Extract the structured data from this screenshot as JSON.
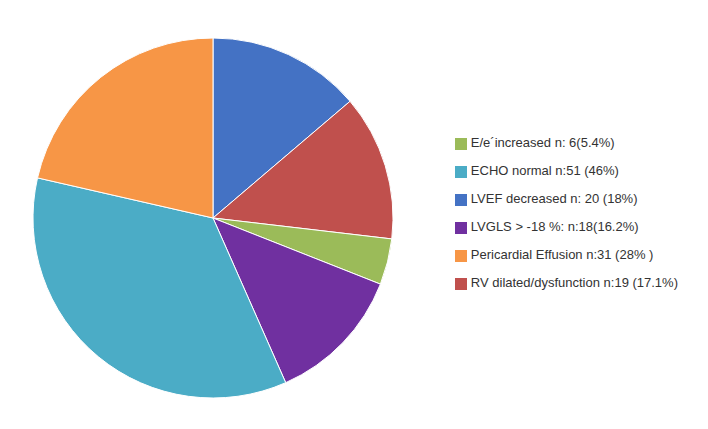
{
  "chart_data": {
    "type": "pie",
    "categories": [
      "LVEF decreased  n: 20 (18%)",
      "RV dilated/dysfunction n:19 (17.1%)",
      "E/e´increased  n: 6(5.4%)",
      "LVGLS > -18 %:   n:18(16.2%)",
      "ECHO normal  n:51 (46%)",
      "Pericardial Effusion n:31 (28%  )"
    ],
    "values": [
      18,
      17.1,
      5.4,
      16.2,
      46,
      28
    ],
    "colors": [
      "#4472C4",
      "#C0504D",
      "#9BBB59",
      "#7030A0",
      "#4BACC6",
      "#F79646"
    ],
    "legend": "right"
  }
}
